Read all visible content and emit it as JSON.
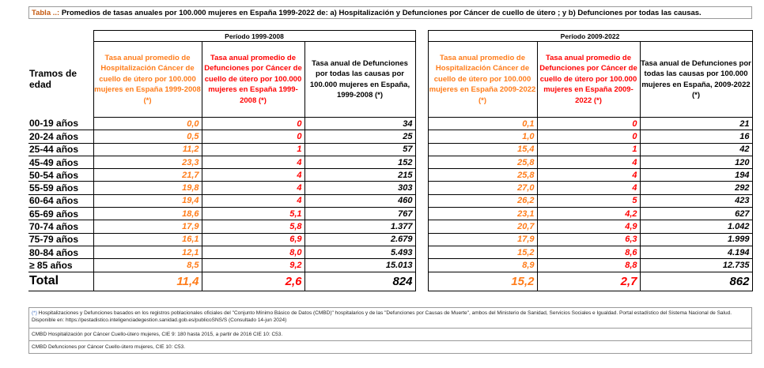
{
  "title": {
    "prefix": "Tabla ..:",
    "text": " Promedios de tasas anuales por 100.000 mujeres en España 1999-2022 de: a) Hospitalización y Defunciones por Cáncer de cuello de útero ; y b) Defunciones por todas las causas."
  },
  "periods": [
    "Período 1999-2008",
    "Período 2009-2022"
  ],
  "headers": {
    "age": "Tramos de edad",
    "p1": [
      "Tasa anual promedio de Hospitalización Cáncer de cuello de útero por 100.000 mujeres en España 1999-2008 (*)",
      "Tasa anual promedio de Defunciones por Cáncer de cuello de útero por 100.000 mujeres en España 1999-2008 (*)",
      "Tasa anual de Defunciones por todas las causas por 100.000 mujeres en España, 1999-2008 (*)"
    ],
    "p2": [
      "Tasa anual promedio de Hospitalización Cáncer de cuello de útero por 100.000 mujeres en España 2009-2022 (*)",
      "Tasa anual promedio de Defunciones por Cáncer de cuello de útero por 100.000 mujeres en España 2009-2022 (*)",
      "Tasa anual de Defunciones por todas las causas por 100.000 mujeres en España, 2009-2022 (*)"
    ]
  },
  "rows": [
    {
      "age": "00-19 años",
      "v": [
        "0,0",
        "0",
        "34",
        "0,1",
        "0",
        "21"
      ]
    },
    {
      "age": "20-24 años",
      "v": [
        "0,5",
        "0",
        "25",
        "1,0",
        "0",
        "16"
      ]
    },
    {
      "age": "25-44 años",
      "v": [
        "11,2",
        "1",
        "57",
        "15,4",
        "1",
        "42"
      ]
    },
    {
      "age": "45-49 años",
      "v": [
        "23,3",
        "4",
        "152",
        "25,8",
        "4",
        "120"
      ]
    },
    {
      "age": "50-54 años",
      "v": [
        "21,7",
        "4",
        "215",
        "25,8",
        "4",
        "194"
      ]
    },
    {
      "age": "55-59 años",
      "v": [
        "19,8",
        "4",
        "303",
        "27,0",
        "4",
        "292"
      ]
    },
    {
      "age": "60-64 años",
      "v": [
        "19,4",
        "4",
        "460",
        "26,2",
        "5",
        "423"
      ]
    },
    {
      "age": "65-69 años",
      "v": [
        "18,6",
        "5,1",
        "767",
        "23,1",
        "4,2",
        "627"
      ]
    },
    {
      "age": "70-74 años",
      "v": [
        "17,9",
        "5,8",
        "1.377",
        "20,7",
        "4,9",
        "1.042"
      ]
    },
    {
      "age": "75-79 años",
      "v": [
        "16,1",
        "6,9",
        "2.679",
        "17,9",
        "6,3",
        "1.999"
      ]
    },
    {
      "age": "80-84 años",
      "v": [
        "12,1",
        "8,0",
        "5.493",
        "15,2",
        "8,6",
        "4.194"
      ]
    },
    {
      "age": "≥ 85 años",
      "v": [
        "8,5",
        "9,2",
        "15.013",
        "8,9",
        "8,8",
        "12.735"
      ]
    }
  ],
  "total": {
    "age": "Total",
    "v": [
      "11,4",
      "2,6",
      "824",
      "15,2",
      "2,7",
      "862"
    ]
  },
  "notes": {
    "n1_star": "(*)",
    "n1": " Hospitalizaciones y Defunciones basados en los registros poblacionales oficiales del \"Conjunto Mínimo Básico de Datos (CMBD)\" hospitalarios y de las \"Defunciones por Causas de Muerte\", ambos del Ministerio de Sanidad, Servicios Sociales e Igualdad. Portal estadístico del Sistema Nacional de Salud. Disponible en: https://pestadistico.inteligenciadegestion.sanidad.gob.es/publicoSNS/S (Consultado 14-jun 2024)",
    "n2": "CMBD Hospitalización por Cáncer Cuello-útero mujeres, CIE 9: 180 hasta 2015, a partir de 2016 CIE 10: C53.",
    "n3": "CMBD Defunciones por Cáncer Cuello-útero mujeres, CIE 10: C53."
  },
  "colors": {
    "orange": "#ff7c1a",
    "red": "#ff0000",
    "black": "#000000"
  }
}
